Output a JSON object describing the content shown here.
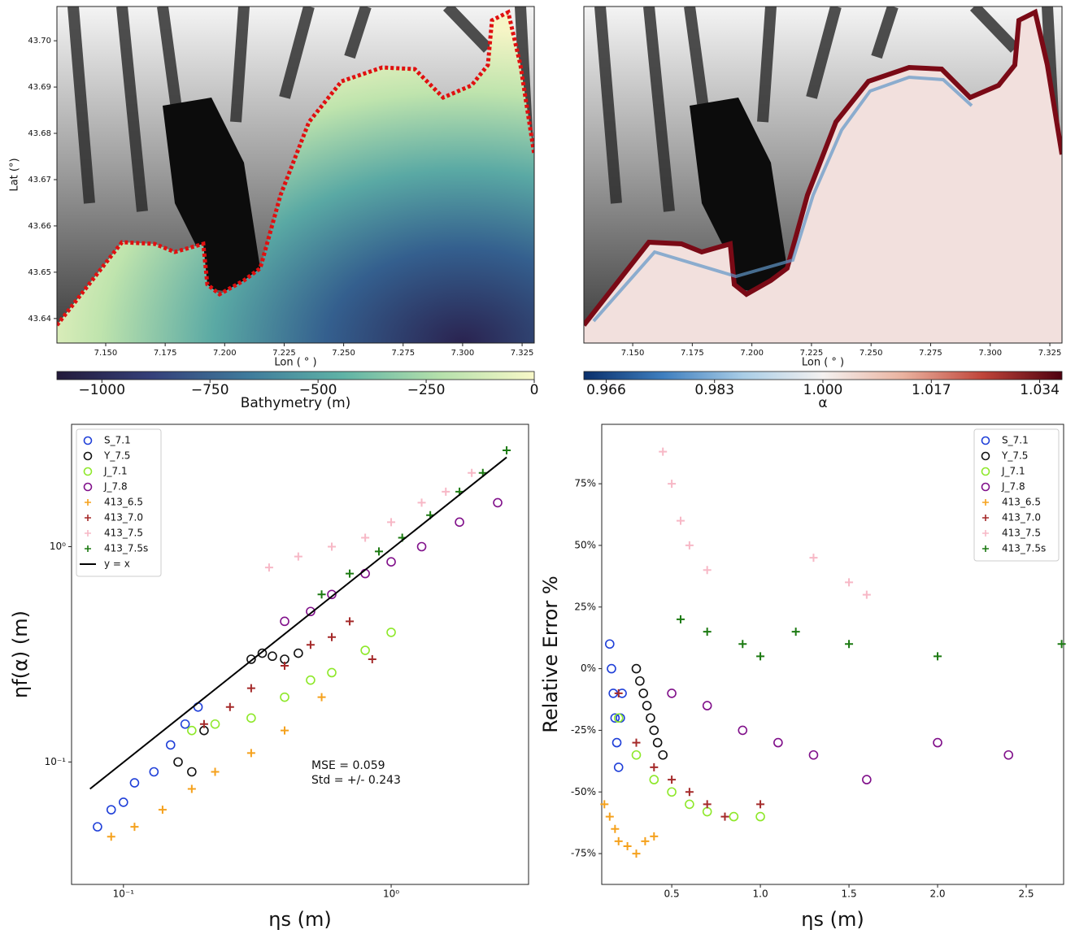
{
  "chart_data": [
    {
      "type": "map",
      "xlabel": "Lon ( ° )",
      "ylabel": "Lat (°)",
      "xlim": [
        7.1295,
        7.3301
      ],
      "ylim": [
        43.6347,
        43.7074
      ],
      "xticks": [
        {
          "value": 7.15,
          "label": "7.150"
        },
        7.175,
        {
          "value": 7.2,
          "label": "7.200"
        },
        7.225,
        {
          "value": 7.25,
          "label": "7.250"
        },
        7.275,
        {
          "value": 7.3,
          "label": "7.300"
        },
        7.325
      ],
      "yticks": [
        43.64,
        43.65,
        43.66,
        43.67,
        43.68,
        43.69,
        {
          "value": 43.7,
          "label": "43.70"
        }
      ],
      "colorbar": {
        "label": "Bathymetry (m)",
        "clim": [
          -1104,
          0
        ],
        "colormap": [
          "#231a3a",
          "#35407a",
          "#3f7b9c",
          "#5fb3a6",
          "#b4e0ab",
          "#f8f8c8"
        ],
        "ticks": [
          {
            "value": -1000,
            "label": "−1000"
          },
          {
            "value": -750,
            "label": "−750"
          },
          {
            "value": -500,
            "label": "−500"
          },
          {
            "value": -250,
            "label": "−250"
          },
          0
        ]
      }
    },
    {
      "type": "map",
      "xlabel": "Lon ( ° )",
      "xlim": [
        7.1295,
        7.3301
      ],
      "ylim": [
        43.6347,
        43.7074
      ],
      "xticks": [
        {
          "value": 7.15,
          "label": "7.150"
        },
        7.175,
        {
          "value": 7.2,
          "label": "7.200"
        },
        7.225,
        {
          "value": 7.25,
          "label": "7.250"
        },
        7.275,
        {
          "value": 7.3,
          "label": "7.300"
        },
        7.325
      ],
      "colorbar": {
        "label": "α",
        "clim": [
          0.9625,
          1.0375
        ],
        "colormap": [
          "#0a2f6b",
          "#3f7fbf",
          "#a9cde6",
          "#f4f1f0",
          "#eab3a0",
          "#c0453a",
          "#4e000f"
        ],
        "ticks": [
          0.966,
          0.983,
          {
            "value": 1.0,
            "label": "1.000"
          },
          1.017,
          1.034
        ]
      }
    },
    {
      "type": "scatter",
      "xlabel": "ηs (m)",
      "ylabel": "ηf(α) (m)",
      "log": true,
      "xlim": [
        0.064,
        3.26
      ],
      "ylim": [
        0.027,
        3.7
      ],
      "xticks": [
        {
          "value": 0.1,
          "label": "10⁻¹"
        },
        {
          "value": 1,
          "label": "10⁰"
        }
      ],
      "yticks": [
        {
          "value": 0.1,
          "label": "10⁻¹"
        },
        {
          "value": 1,
          "label": "10⁰"
        }
      ],
      "legend": "upper left",
      "annotations": [
        "MSE = 0.059",
        "Std = +/- 0.243"
      ],
      "series": [
        {
          "name": "S_7.1",
          "color": "#1f3fd8",
          "marker": "o",
          "x": [
            0.08,
            0.09,
            0.1,
            0.11,
            0.13,
            0.15,
            0.17,
            0.19
          ],
          "values": [
            0.05,
            0.06,
            0.065,
            0.08,
            0.09,
            0.12,
            0.15,
            0.18
          ]
        },
        {
          "name": "Y_7.5",
          "color": "#111111",
          "marker": "o",
          "x": [
            0.16,
            0.18,
            0.2,
            0.3,
            0.33,
            0.36,
            0.4,
            0.45
          ],
          "values": [
            0.1,
            0.09,
            0.14,
            0.3,
            0.32,
            0.31,
            0.3,
            0.32
          ]
        },
        {
          "name": "J_7.1",
          "color": "#8ee82a",
          "marker": "o",
          "x": [
            0.18,
            0.22,
            0.3,
            0.4,
            0.5,
            0.6,
            0.8,
            1.0
          ],
          "values": [
            0.14,
            0.15,
            0.16,
            0.2,
            0.24,
            0.26,
            0.33,
            0.4
          ]
        },
        {
          "name": "J_7.8",
          "color": "#80108a",
          "marker": "o",
          "x": [
            0.4,
            0.5,
            0.6,
            0.8,
            1.0,
            1.3,
            1.8,
            2.5
          ],
          "values": [
            0.45,
            0.5,
            0.6,
            0.75,
            0.85,
            1.0,
            1.3,
            1.6
          ]
        },
        {
          "name": "413_6.5",
          "color": "#f5a11c",
          "marker": "+",
          "x": [
            0.09,
            0.11,
            0.14,
            0.18,
            0.22,
            0.3,
            0.4,
            0.55
          ],
          "values": [
            0.045,
            0.05,
            0.06,
            0.075,
            0.09,
            0.11,
            0.14,
            0.2
          ]
        },
        {
          "name": "413_7.0",
          "color": "#a52a2a",
          "marker": "+",
          "x": [
            0.2,
            0.25,
            0.3,
            0.4,
            0.5,
            0.6,
            0.7,
            0.85
          ],
          "values": [
            0.15,
            0.18,
            0.22,
            0.28,
            0.35,
            0.38,
            0.45,
            0.3
          ]
        },
        {
          "name": "413_7.5",
          "color": "#f7b8c6",
          "marker": "+",
          "x": [
            0.35,
            0.45,
            0.6,
            0.8,
            1.0,
            1.3,
            1.6,
            2.0
          ],
          "values": [
            0.8,
            0.9,
            1.0,
            1.1,
            1.3,
            1.6,
            1.8,
            2.2
          ]
        },
        {
          "name": "413_7.5s",
          "color": "#1c7a12",
          "marker": "+",
          "x": [
            0.55,
            0.7,
            0.9,
            1.1,
            1.4,
            1.8,
            2.2,
            2.7
          ],
          "values": [
            0.6,
            0.75,
            0.95,
            1.1,
            1.4,
            1.8,
            2.2,
            2.8
          ]
        },
        {
          "name": "y = x",
          "color": "#000000",
          "marker": "-",
          "x": [
            0.075,
            2.7
          ],
          "values": [
            0.075,
            2.6
          ]
        }
      ]
    },
    {
      "type": "scatter",
      "xlabel": "ηs (m)",
      "ylabel": "Relative Error %",
      "log": false,
      "xlim": [
        0.105,
        2.711
      ],
      "ylim": [
        -87.5,
        99.1
      ],
      "xticks": [
        0.5,
        {
          "value": 1,
          "label": "1.0"
        },
        1.5,
        {
          "value": 2,
          "label": "2.0"
        },
        2.5
      ],
      "yticks": [
        {
          "value": -75,
          "label": "-75%"
        },
        {
          "value": -50,
          "label": "-50%"
        },
        {
          "value": -25,
          "label": "-25%"
        },
        {
          "value": 0,
          "label": "0%"
        },
        {
          "value": 25,
          "label": "25%"
        },
        {
          "value": 50,
          "label": "50%"
        },
        {
          "value": 75,
          "label": "75%"
        }
      ],
      "legend": "upper right",
      "series": [
        {
          "name": "S_7.1",
          "color": "#1f3fd8",
          "marker": "o",
          "x": [
            0.15,
            0.16,
            0.17,
            0.18,
            0.19,
            0.2,
            0.21,
            0.22
          ],
          "values": [
            10,
            0,
            -10,
            -20,
            -30,
            -40,
            -20,
            -10
          ]
        },
        {
          "name": "Y_7.5",
          "color": "#111111",
          "marker": "o",
          "x": [
            0.3,
            0.32,
            0.34,
            0.36,
            0.38,
            0.4,
            0.42,
            0.45
          ],
          "values": [
            0,
            -5,
            -10,
            -15,
            -20,
            -25,
            -30,
            -35
          ]
        },
        {
          "name": "J_7.1",
          "color": "#8ee82a",
          "marker": "o",
          "x": [
            0.2,
            0.3,
            0.4,
            0.5,
            0.6,
            0.7,
            0.85,
            1.0
          ],
          "values": [
            -20,
            -35,
            -45,
            -50,
            -55,
            -58,
            -60,
            -60
          ]
        },
        {
          "name": "J_7.8",
          "color": "#80108a",
          "marker": "o",
          "x": [
            0.5,
            0.7,
            0.9,
            1.1,
            1.3,
            1.6,
            2.0,
            2.4
          ],
          "values": [
            -10,
            -15,
            -25,
            -30,
            -35,
            -45,
            -30,
            -35
          ]
        },
        {
          "name": "413_6.5",
          "color": "#f5a11c",
          "marker": "+",
          "x": [
            0.12,
            0.15,
            0.18,
            0.2,
            0.25,
            0.3,
            0.35,
            0.4
          ],
          "values": [
            -55,
            -60,
            -65,
            -70,
            -72,
            -75,
            -70,
            -68
          ]
        },
        {
          "name": "413_7.0",
          "color": "#a52a2a",
          "marker": "+",
          "x": [
            0.2,
            0.3,
            0.4,
            0.5,
            0.6,
            0.7,
            0.8,
            1.0
          ],
          "values": [
            -10,
            -30,
            -40,
            -45,
            -50,
            -55,
            -60,
            -55
          ]
        },
        {
          "name": "413_7.5",
          "color": "#f7b8c6",
          "marker": "+",
          "x": [
            0.45,
            0.5,
            0.55,
            0.6,
            0.7,
            1.3,
            1.5,
            1.6
          ],
          "values": [
            88,
            75,
            60,
            50,
            40,
            45,
            35,
            30
          ]
        },
        {
          "name": "413_7.5s",
          "color": "#1c7a12",
          "marker": "+",
          "x": [
            0.55,
            0.7,
            0.9,
            1.0,
            1.2,
            1.5,
            2.0,
            2.7
          ],
          "values": [
            20,
            15,
            10,
            5,
            15,
            10,
            5,
            10
          ]
        }
      ]
    }
  ]
}
